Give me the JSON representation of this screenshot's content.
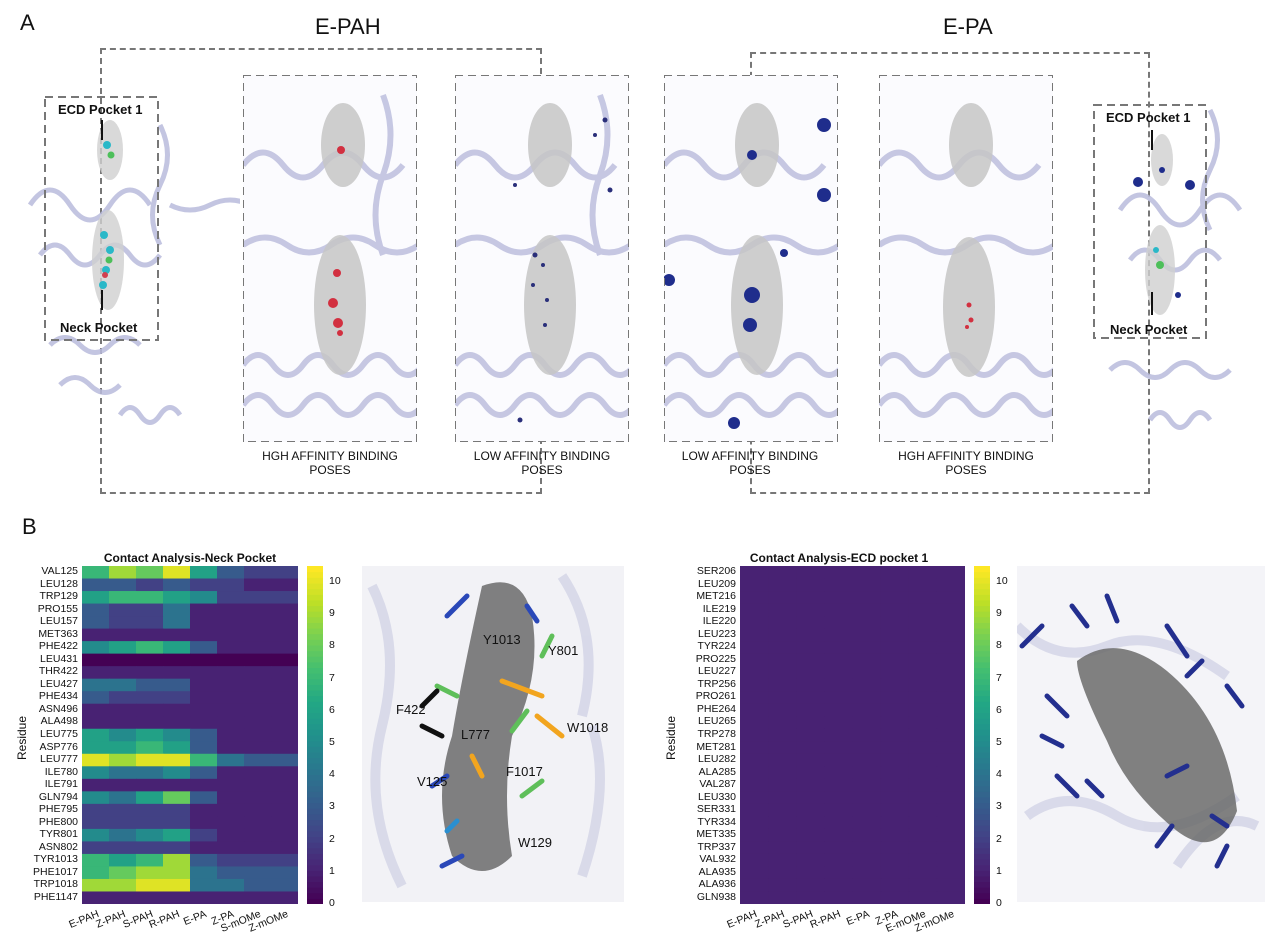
{
  "panel_a": {
    "letter": "A",
    "group_left": "E-PAH",
    "group_right": "E-PA",
    "labels": {
      "ecd_left": "ECD Pocket 1",
      "neck_left": "Neck Pocket",
      "ecd_right": "ECD Pocket 1",
      "neck_right": "Neck Pocket"
    },
    "poses": [
      "HGH AFFINITY BINDING POSES",
      "LOW AFFINITY BINDING POSES",
      "LOW AFFINITY BINDING POSES",
      "HGH AFFINITY BINDING POSES"
    ]
  },
  "panel_b": {
    "letter": "B",
    "ylabel": "Residue",
    "colorbar_ticks": [
      "0",
      "1",
      "2",
      "3",
      "4",
      "5",
      "6",
      "7",
      "8",
      "9",
      "10"
    ],
    "structure_labels": [
      "Y1013",
      "Y801",
      "F422",
      "W1018",
      "L777",
      "F1017",
      "V125",
      "W129"
    ]
  },
  "chart_data": [
    {
      "type": "heatmap",
      "title": "Contact Analysis-Neck Pocket",
      "ylabel": "Residue",
      "colorbar_range": [
        0,
        10.5
      ],
      "x": [
        "E-PAH",
        "Z-PAH",
        "S-PAH",
        "R-PAH",
        "E-PA",
        "Z-PA",
        "S-mOMe",
        "Z-mOMe"
      ],
      "y": [
        "VAL125",
        "LEU128",
        "TRP129",
        "PRO155",
        "LEU157",
        "MET363",
        "PHE422",
        "LEU431",
        "THR422",
        "LEU427",
        "PHE434",
        "ASN496",
        "ALA498",
        "LEU775",
        "ASP776",
        "LEU777",
        "ILE780",
        "ILE791",
        "GLN794",
        "PHE795",
        "PHE800",
        "TYR801",
        "ASN802",
        "TYR1013",
        "PHE1017",
        "TRP1018",
        "PHE1147"
      ],
      "values": [
        [
          7,
          9,
          8,
          10,
          6,
          3,
          2,
          2
        ],
        [
          3,
          3,
          2,
          3,
          2,
          2,
          1,
          1
        ],
        [
          6,
          7,
          7,
          6,
          5,
          2,
          2,
          2
        ],
        [
          3,
          2,
          2,
          4,
          1,
          1,
          1,
          1
        ],
        [
          3,
          2,
          2,
          4,
          1,
          1,
          1,
          1
        ],
        [
          1,
          1,
          1,
          1,
          1,
          1,
          1,
          1
        ],
        [
          5,
          6,
          7,
          6,
          3,
          1,
          1,
          1
        ],
        [
          0,
          0,
          0,
          0,
          0,
          0,
          0,
          0
        ],
        [
          1,
          1,
          1,
          1,
          1,
          1,
          1,
          1
        ],
        [
          4,
          4,
          3,
          3,
          1,
          1,
          1,
          1
        ],
        [
          3,
          2,
          2,
          2,
          1,
          1,
          1,
          1
        ],
        [
          1,
          1,
          1,
          1,
          1,
          1,
          1,
          1
        ],
        [
          1,
          1,
          1,
          1,
          1,
          1,
          1,
          1
        ],
        [
          6,
          5,
          6,
          5,
          3,
          1,
          1,
          1
        ],
        [
          6,
          6,
          7,
          6,
          3,
          1,
          1,
          1
        ],
        [
          10,
          9,
          10,
          10,
          7,
          4,
          3,
          3
        ],
        [
          5,
          4,
          4,
          5,
          3,
          1,
          1,
          1
        ],
        [
          1,
          1,
          1,
          1,
          1,
          1,
          1,
          1
        ],
        [
          5,
          4,
          6,
          8,
          3,
          1,
          1,
          1
        ],
        [
          2,
          2,
          2,
          2,
          1,
          1,
          1,
          1
        ],
        [
          2,
          2,
          2,
          2,
          1,
          1,
          1,
          1
        ],
        [
          5,
          4,
          5,
          6,
          2,
          1,
          1,
          1
        ],
        [
          2,
          2,
          2,
          2,
          1,
          1,
          1,
          1
        ],
        [
          7,
          6,
          7,
          9,
          3,
          2,
          2,
          2
        ],
        [
          7,
          8,
          9,
          9,
          4,
          3,
          3,
          3
        ],
        [
          9,
          9,
          10,
          10,
          4,
          4,
          3,
          3
        ],
        [
          1,
          1,
          1,
          1,
          1,
          1,
          1,
          1
        ]
      ]
    },
    {
      "type": "heatmap",
      "title": "Contact Analysis-ECD pocket 1",
      "ylabel": "Residue",
      "colorbar_range": [
        0,
        10.5
      ],
      "x": [
        "E-PAH",
        "Z-PAH",
        "S-PAH",
        "R-PAH",
        "E-PA",
        "Z-PA",
        "E-mOMe",
        "Z-mOMe"
      ],
      "y": [
        "SER206",
        "LEU209",
        "MET216",
        "ILE219",
        "ILE220",
        "LEU223",
        "TYR224",
        "PRO225",
        "LEU227",
        "TRP256",
        "PRO261",
        "PHE264",
        "LEU265",
        "TRP278",
        "MET281",
        "LEU282",
        "ALA285",
        "VAL287",
        "LEU330",
        "SER331",
        "TYR334",
        "MET335",
        "TRP337",
        "VAL932",
        "ALA935",
        "ALA936",
        "GLN938"
      ],
      "values": [
        [
          1,
          1,
          1,
          1,
          1,
          1,
          1,
          1
        ],
        [
          1,
          1,
          1,
          1,
          1,
          1,
          1,
          1
        ],
        [
          1,
          1,
          1,
          1,
          1,
          1,
          1,
          1
        ],
        [
          1,
          1,
          1,
          1,
          1,
          1,
          1,
          1
        ],
        [
          1,
          1,
          1,
          1,
          1,
          1,
          1,
          1
        ],
        [
          1,
          1,
          1,
          1,
          1,
          1,
          1,
          1
        ],
        [
          1,
          1,
          1,
          1,
          1,
          1,
          1,
          1
        ],
        [
          1,
          1,
          1,
          1,
          1,
          1,
          1,
          1
        ],
        [
          1,
          1,
          1,
          1,
          1,
          1,
          1,
          1
        ],
        [
          1,
          1,
          1,
          1,
          1,
          1,
          1,
          1
        ],
        [
          1,
          1,
          1,
          1,
          1,
          1,
          1,
          1
        ],
        [
          1,
          1,
          1,
          1,
          1,
          1,
          1,
          1
        ],
        [
          1,
          1,
          1,
          1,
          1,
          1,
          1,
          1
        ],
        [
          1,
          1,
          1,
          1,
          1,
          1,
          1,
          1
        ],
        [
          1,
          1,
          1,
          1,
          1,
          1,
          1,
          1
        ],
        [
          1,
          1,
          1,
          1,
          1,
          1,
          1,
          1
        ],
        [
          1,
          1,
          1,
          1,
          1,
          1,
          1,
          1
        ],
        [
          1,
          1,
          1,
          1,
          1,
          1,
          1,
          1
        ],
        [
          1,
          1,
          1,
          1,
          1,
          1,
          1,
          1
        ],
        [
          1,
          1,
          1,
          1,
          1,
          1,
          1,
          1
        ],
        [
          1,
          1,
          1,
          1,
          1,
          1,
          1,
          1
        ],
        [
          1,
          1,
          1,
          1,
          1,
          1,
          1,
          1
        ],
        [
          1,
          1,
          1,
          1,
          1,
          1,
          1,
          1
        ],
        [
          1,
          1,
          1,
          1,
          1,
          1,
          1,
          1
        ],
        [
          1,
          1,
          1,
          1,
          1,
          1,
          1,
          1
        ],
        [
          1,
          1,
          1,
          1,
          1,
          1,
          1,
          1
        ],
        [
          1,
          1,
          1,
          1,
          1,
          1,
          1,
          1
        ]
      ]
    }
  ]
}
